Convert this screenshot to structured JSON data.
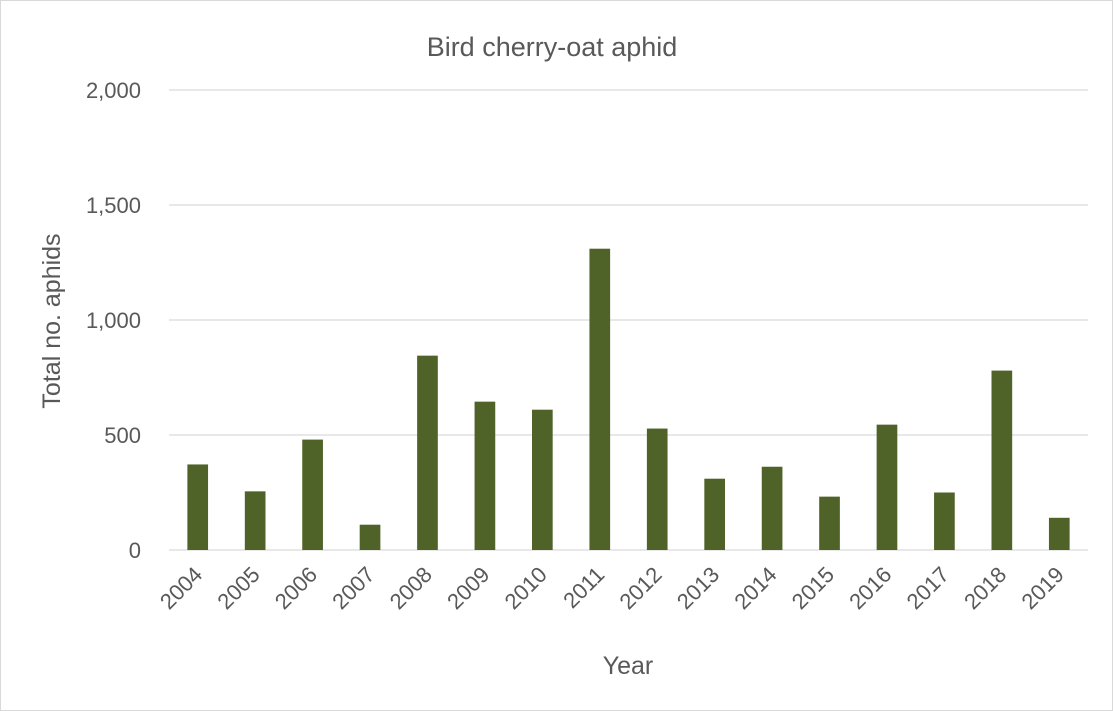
{
  "chart_data": {
    "type": "bar",
    "title": "Bird cherry-oat aphid",
    "xlabel": "Year",
    "ylabel": "Total no. aphids",
    "categories": [
      "2004",
      "2005",
      "2006",
      "2007",
      "2008",
      "2009",
      "2010",
      "2011",
      "2012",
      "2013",
      "2014",
      "2015",
      "2016",
      "2017",
      "2018",
      "2019"
    ],
    "series": [
      {
        "values": [
          372,
          255,
          480,
          110,
          845,
          645,
          610,
          1310,
          528,
          310,
          362,
          232,
          545,
          250,
          780,
          140
        ]
      }
    ],
    "ylim": [
      0,
      2000
    ],
    "yticks": [
      0,
      500,
      1000,
      1500,
      2000
    ],
    "ytick_labels": [
      "0",
      "500",
      "1,000",
      "1,500",
      "2,000"
    ],
    "grid": "horizontal",
    "legend": "none",
    "colors": {
      "bar": "#4f6228",
      "grid": "#d9d9d9",
      "text": "#595959",
      "border": "#d9d9d9"
    }
  }
}
